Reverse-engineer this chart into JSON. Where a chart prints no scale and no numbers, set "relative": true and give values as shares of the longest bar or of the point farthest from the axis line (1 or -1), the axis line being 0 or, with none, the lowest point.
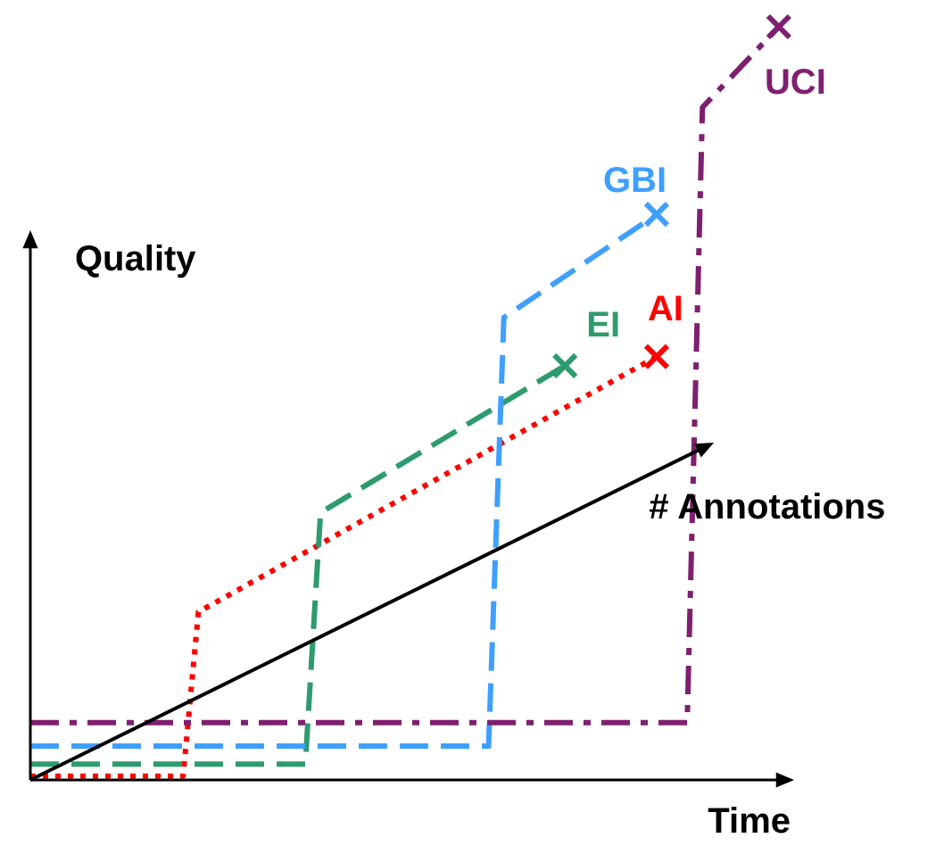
{
  "chart_data": {
    "type": "line",
    "relative": true,
    "xlabel": "Time",
    "ylabel": "Quality",
    "legend": false,
    "annotations": [
      "# Annotations"
    ],
    "categories": [
      null,
      null,
      null,
      null,
      null,
      null,
      null,
      null,
      null,
      null,
      null,
      null,
      null,
      null,
      null,
      null,
      null,
      null,
      null,
      null,
      null,
      null,
      null,
      null,
      null,
      null,
      null,
      null,
      null,
      null,
      null,
      null,
      null,
      null,
      null,
      null,
      null,
      null,
      null,
      null,
      null,
      null,
      null,
      null,
      null,
      null,
      null,
      null,
      null,
      null,
      null
    ],
    "series": [
      {
        "name": "UCI",
        "color": "#7f1f6f",
        "line_style": "dashed",
        "values": [
          0.076,
          null,
          null,
          null,
          null,
          null,
          null,
          null,
          null,
          null,
          null,
          null,
          null,
          null,
          null,
          null,
          null,
          null,
          null,
          null,
          null,
          null,
          null,
          null,
          null,
          null,
          null,
          null,
          null,
          null,
          null,
          null,
          null,
          null,
          null,
          null,
          null,
          null,
          null,
          null,
          null,
          null,
          null,
          0.076,
          0.893,
          null,
          null,
          null,
          null,
          1,
          null
        ]
      },
      {
        "name": "GBI",
        "color": "#3f9fff",
        "line_style": "dashed",
        "values": [
          0.045,
          null,
          null,
          null,
          null,
          null,
          null,
          null,
          null,
          null,
          null,
          null,
          null,
          null,
          null,
          null,
          null,
          null,
          null,
          null,
          null,
          null,
          null,
          null,
          null,
          null,
          null,
          null,
          null,
          null,
          0.045,
          0.614,
          null,
          null,
          null,
          null,
          null,
          null,
          null,
          null,
          null,
          0.751,
          null,
          null,
          null,
          null,
          null,
          null,
          null,
          null,
          null
        ]
      },
      {
        "name": "EI",
        "color": "#2e9b6e",
        "line_style": "dashed",
        "values": [
          0.021,
          null,
          null,
          null,
          null,
          null,
          null,
          null,
          null,
          null,
          null,
          null,
          null,
          null,
          null,
          null,
          null,
          null,
          0.021,
          0.355,
          null,
          null,
          null,
          null,
          null,
          null,
          null,
          null,
          null,
          null,
          null,
          null,
          null,
          null,
          null,
          0.55,
          null,
          null,
          null,
          null,
          null,
          null,
          null,
          null,
          null,
          null,
          null,
          null,
          null,
          null,
          null
        ]
      },
      {
        "name": "AI",
        "color": "#ff0000",
        "line_style": "dotted",
        "values": [
          0.005,
          null,
          null,
          null,
          null,
          null,
          null,
          null,
          null,
          null,
          0.005,
          0.223,
          null,
          null,
          null,
          null,
          null,
          null,
          null,
          null,
          null,
          null,
          null,
          null,
          null,
          null,
          null,
          null,
          null,
          null,
          null,
          null,
          null,
          null,
          null,
          null,
          null,
          null,
          null,
          null,
          null,
          0.562,
          null,
          null,
          null,
          null,
          null,
          null,
          null,
          null,
          null
        ]
      }
    ]
  }
}
